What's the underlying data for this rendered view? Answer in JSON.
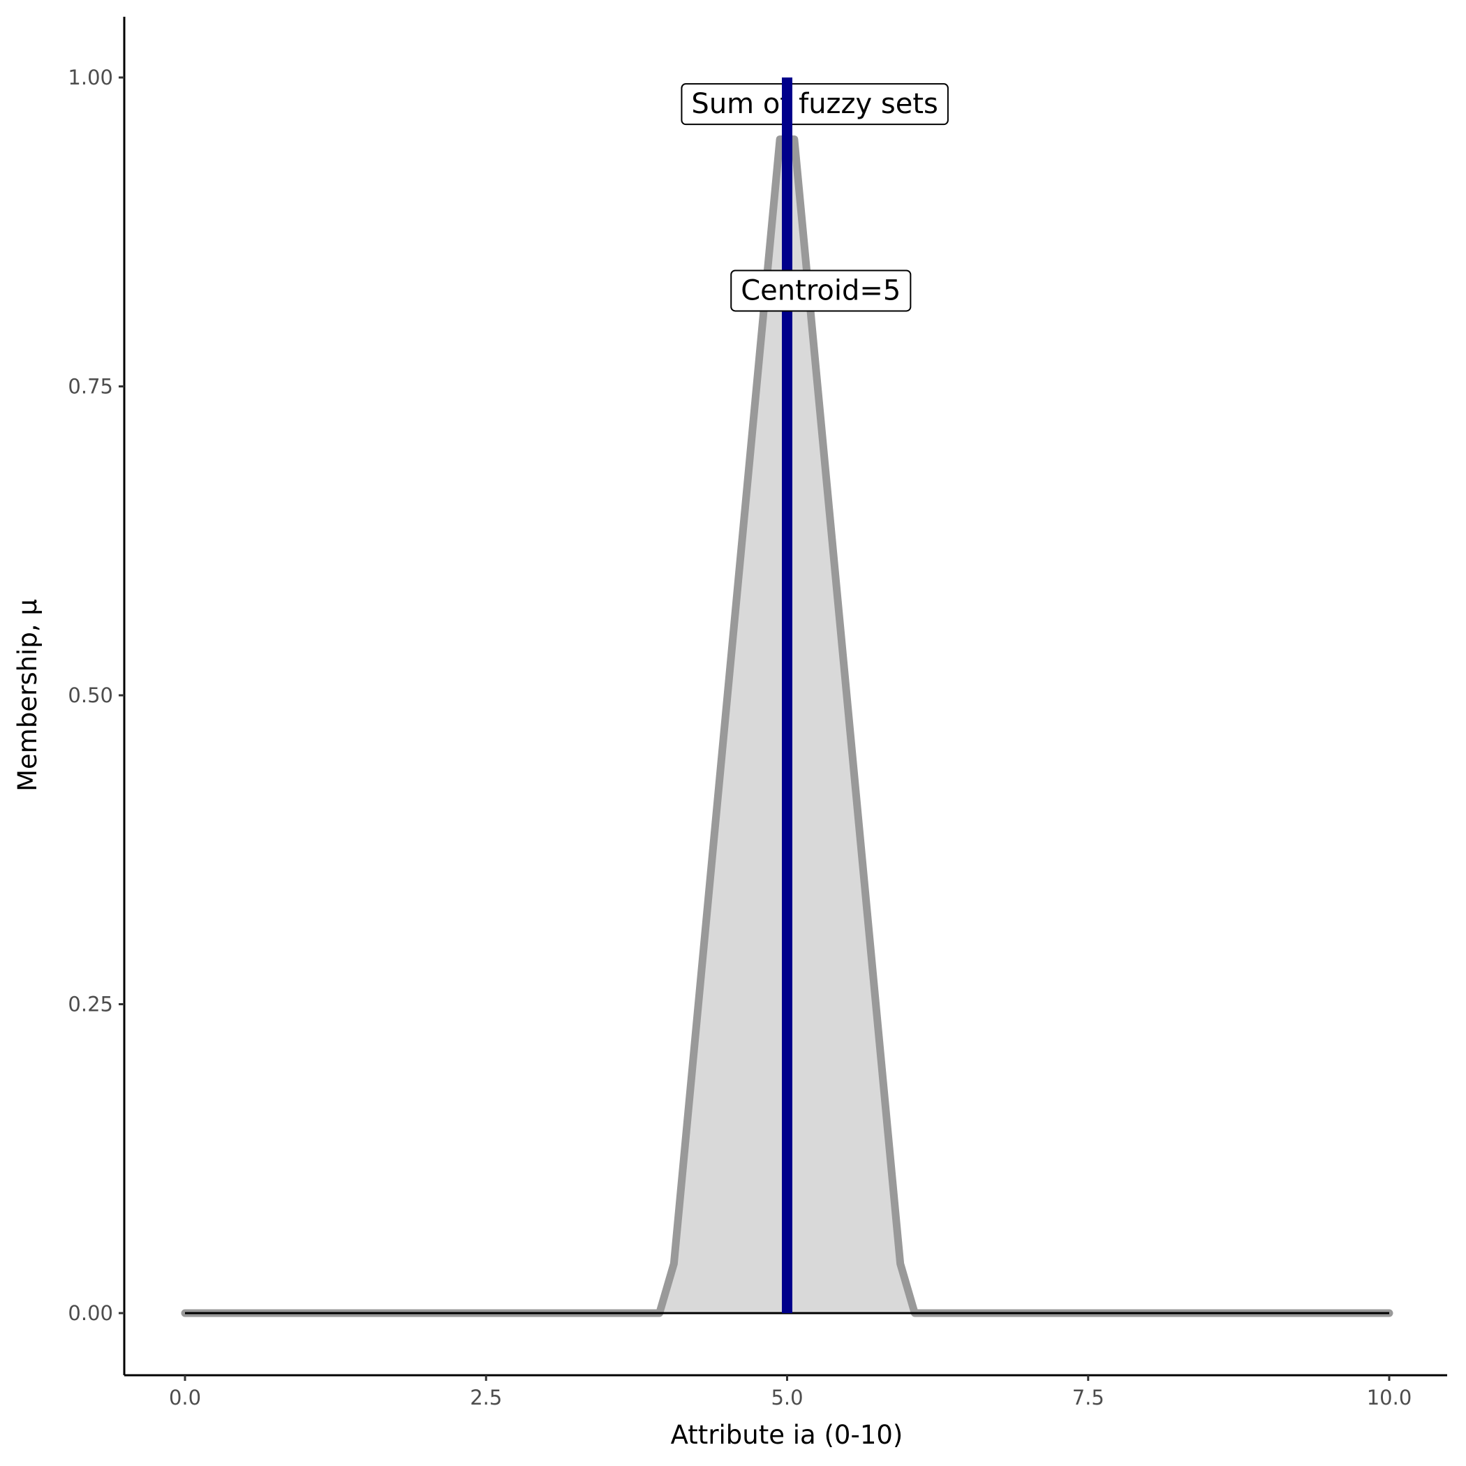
{
  "chart_data": {
    "type": "area",
    "title": "",
    "xlabel": "Attribute ia (0-10)",
    "ylabel": "Membership, μ",
    "xlim": [
      -0.5,
      10.5
    ],
    "ylim": [
      -0.05,
      1.05
    ],
    "xticks": [
      "0.0",
      "2.5",
      "5.0",
      "7.5",
      "10.0"
    ],
    "xtick_values": [
      0,
      2.5,
      5,
      7.5,
      10
    ],
    "yticks": [
      "0.00",
      "0.25",
      "0.50",
      "0.75",
      "1.00"
    ],
    "ytick_values": [
      0,
      0.25,
      0.5,
      0.75,
      1
    ],
    "grid": false,
    "series": [
      {
        "x": [
          0,
          3.94,
          4.06,
          4.94,
          5.06,
          5.94,
          6.06,
          10
        ],
        "y": [
          0,
          0,
          0.04,
          0.95,
          0.95,
          0.04,
          0,
          0
        ],
        "line_color": "#999999",
        "fill_color": "#d9d9d9"
      }
    ],
    "hline": {
      "y": 0,
      "x": [
        0,
        10
      ],
      "color": "#000000"
    },
    "vline": {
      "x": 5,
      "y": [
        0,
        1
      ],
      "color": "#00008b"
    },
    "annotations": [
      {
        "text": "Sum of fuzzy sets",
        "x": 5.23,
        "y": 0.979
      },
      {
        "text": "Centroid=5",
        "x": 5.28,
        "y": 0.828
      }
    ]
  }
}
